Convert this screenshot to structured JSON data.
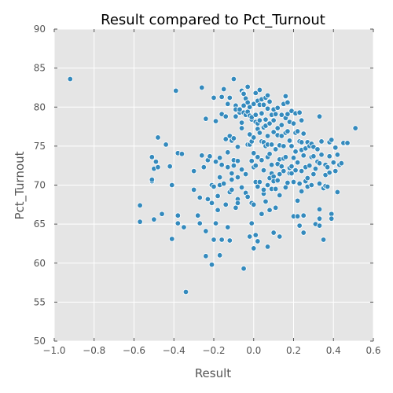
{
  "chart_data": {
    "type": "scatter",
    "title": "Result compared to Pct_Turnout",
    "xlabel": "Result",
    "ylabel": "Pct_Turnout",
    "xlim": [
      -1.0,
      0.6
    ],
    "ylim": [
      50,
      90
    ],
    "x_ticks": [
      -1.0,
      -0.8,
      -0.6,
      -0.4,
      -0.2,
      0.0,
      0.2,
      0.4,
      0.6
    ],
    "x_tick_labels": [
      "−1.0",
      "−0.8",
      "−0.6",
      "−0.4",
      "−0.2",
      "0.0",
      "0.2",
      "0.4",
      "0.6"
    ],
    "y_ticks": [
      50,
      55,
      60,
      65,
      70,
      75,
      80,
      85,
      90
    ],
    "y_tick_labels": [
      "50",
      "55",
      "60",
      "65",
      "70",
      "75",
      "80",
      "85",
      "90"
    ],
    "grid": true,
    "background_color": "#e5e5e5",
    "point_color": "#348abd",
    "points": [
      [
        -0.92,
        83.6
      ],
      [
        -0.57,
        67.4
      ],
      [
        -0.57,
        65.3
      ],
      [
        -0.51,
        70.5
      ],
      [
        -0.51,
        70.7
      ],
      [
        -0.51,
        73.6
      ],
      [
        -0.5,
        72.1
      ],
      [
        -0.5,
        65.6
      ],
      [
        -0.49,
        73.0
      ],
      [
        -0.48,
        72.3
      ],
      [
        -0.48,
        76.1
      ],
      [
        -0.46,
        66.3
      ],
      [
        -0.44,
        75.2
      ],
      [
        -0.42,
        72.4
      ],
      [
        -0.41,
        70.0
      ],
      [
        -0.41,
        63.1
      ],
      [
        -0.39,
        82.1
      ],
      [
        -0.38,
        74.1
      ],
      [
        -0.38,
        66.1
      ],
      [
        -0.38,
        65.1
      ],
      [
        -0.36,
        74.0
      ],
      [
        -0.35,
        64.6
      ],
      [
        -0.34,
        56.3
      ],
      [
        -0.3,
        69.4
      ],
      [
        -0.3,
        71.8
      ],
      [
        -0.28,
        66.1
      ],
      [
        -0.27,
        65.1
      ],
      [
        -0.27,
        68.4
      ],
      [
        -0.26,
        73.8
      ],
      [
        -0.26,
        82.5
      ],
      [
        -0.25,
        72.3
      ],
      [
        -0.24,
        64.1
      ],
      [
        -0.24,
        60.9
      ],
      [
        -0.24,
        78.5
      ],
      [
        -0.23,
        68.2
      ],
      [
        -0.23,
        73.2
      ],
      [
        -0.22,
        73.7
      ],
      [
        -0.21,
        67.7
      ],
      [
        -0.21,
        70.0
      ],
      [
        -0.2,
        69.8
      ],
      [
        -0.21,
        59.8
      ],
      [
        -0.2,
        81.2
      ],
      [
        -0.2,
        63.0
      ],
      [
        -0.19,
        78.2
      ],
      [
        -0.19,
        65.1
      ],
      [
        -0.19,
        73.0
      ],
      [
        -0.18,
        68.6
      ],
      [
        -0.18,
        66.8
      ],
      [
        -0.17,
        61.0
      ],
      [
        -0.17,
        71.0
      ],
      [
        -0.17,
        70.0
      ],
      [
        -0.17,
        73.5
      ],
      [
        -0.16,
        72.6
      ],
      [
        -0.16,
        63.0
      ],
      [
        -0.16,
        79.1
      ],
      [
        -0.16,
        81.3
      ],
      [
        -0.15,
        82.3
      ],
      [
        -0.15,
        70.2
      ],
      [
        -0.14,
        75.9
      ],
      [
        -0.14,
        78.8
      ],
      [
        -0.14,
        67.5
      ],
      [
        -0.13,
        80.4
      ],
      [
        -0.13,
        64.6
      ],
      [
        -0.13,
        74.2
      ],
      [
        -0.13,
        72.3
      ],
      [
        -0.12,
        69.1
      ],
      [
        -0.12,
        81.2
      ],
      [
        -0.12,
        76.3
      ],
      [
        -0.12,
        62.9
      ],
      [
        -0.11,
        75.7
      ],
      [
        -0.11,
        69.4
      ],
      [
        -0.11,
        70.7
      ],
      [
        -0.11,
        71.5
      ],
      [
        -0.1,
        73.2
      ],
      [
        -0.1,
        72.5
      ],
      [
        -0.1,
        76.0
      ],
      [
        -0.1,
        83.6
      ],
      [
        -0.09,
        67.1
      ],
      [
        -0.09,
        78.8
      ],
      [
        -0.09,
        80.2
      ],
      [
        -0.09,
        79.7
      ],
      [
        -0.08,
        68.2
      ],
      [
        -0.08,
        73.1
      ],
      [
        -0.08,
        74.9
      ],
      [
        -0.08,
        71.0
      ],
      [
        -0.08,
        67.7
      ],
      [
        -0.07,
        79.3
      ],
      [
        -0.07,
        79.7
      ],
      [
        -0.06,
        72.0
      ],
      [
        -0.06,
        82.1
      ],
      [
        -0.06,
        77.3
      ],
      [
        -0.06,
        78.0
      ],
      [
        -0.06,
        69.7
      ],
      [
        -0.05,
        80.2
      ],
      [
        -0.05,
        79.3
      ],
      [
        -0.05,
        59.3
      ],
      [
        -0.05,
        81.8
      ],
      [
        -0.05,
        81.7
      ],
      [
        -0.04,
        81.1
      ],
      [
        -0.04,
        71.4
      ],
      [
        -0.04,
        79.0
      ],
      [
        -0.04,
        69.0
      ],
      [
        -0.03,
        80.6
      ],
      [
        -0.03,
        82.6
      ],
      [
        -0.03,
        75.2
      ],
      [
        -0.03,
        68.5
      ],
      [
        -0.03,
        79.4
      ],
      [
        -0.02,
        78.9
      ],
      [
        -0.02,
        76.4
      ],
      [
        -0.02,
        76.5
      ],
      [
        -0.02,
        80.0
      ],
      [
        -0.02,
        75.2
      ],
      [
        -0.02,
        63.4
      ],
      [
        -0.01,
        67.7
      ],
      [
        -0.01,
        75.6
      ],
      [
        -0.01,
        73.1
      ],
      [
        -0.01,
        65.1
      ],
      [
        -0.01,
        78.4
      ],
      [
        -0.01,
        78.7
      ],
      [
        0.0,
        72.3
      ],
      [
        0.0,
        74.1
      ],
      [
        0.0,
        61.9
      ],
      [
        0.0,
        67.5
      ],
      [
        0.0,
        80.4
      ],
      [
        0.0,
        76.1
      ],
      [
        0.01,
        79.0
      ],
      [
        0.01,
        78.1
      ],
      [
        0.01,
        81.8
      ],
      [
        0.01,
        72.5
      ],
      [
        0.01,
        63.6
      ],
      [
        0.01,
        70.4
      ],
      [
        0.02,
        73.6
      ],
      [
        0.02,
        77.2
      ],
      [
        0.02,
        69.8
      ],
      [
        0.02,
        80.8
      ],
      [
        0.02,
        77.9
      ],
      [
        0.02,
        62.8
      ],
      [
        0.03,
        76.7
      ],
      [
        0.03,
        78.3
      ],
      [
        0.03,
        80.3
      ],
      [
        0.03,
        82.2
      ],
      [
        0.03,
        70.4
      ],
      [
        0.04,
        79.1
      ],
      [
        0.04,
        81.0
      ],
      [
        0.04,
        73.2
      ],
      [
        0.04,
        66.3
      ],
      [
        0.04,
        79.2
      ],
      [
        0.04,
        75.6
      ],
      [
        0.05,
        68.9
      ],
      [
        0.05,
        75.5
      ],
      [
        0.05,
        71.9
      ],
      [
        0.05,
        80.3
      ],
      [
        0.05,
        69.4
      ],
      [
        0.05,
        77.4
      ],
      [
        0.06,
        75.0
      ],
      [
        0.06,
        81.2
      ],
      [
        0.06,
        78.4
      ],
      [
        0.06,
        67.9
      ],
      [
        0.06,
        77.6
      ],
      [
        0.07,
        73.6
      ],
      [
        0.07,
        79.8
      ],
      [
        0.07,
        62.1
      ],
      [
        0.07,
        70.0
      ],
      [
        0.07,
        81.5
      ],
      [
        0.07,
        75.2
      ],
      [
        0.07,
        76.3
      ],
      [
        0.08,
        70.9
      ],
      [
        0.08,
        66.8
      ],
      [
        0.08,
        74.0
      ],
      [
        0.08,
        80.7
      ],
      [
        0.08,
        77.9
      ],
      [
        0.09,
        79.0
      ],
      [
        0.09,
        75.2
      ],
      [
        0.09,
        72.6
      ],
      [
        0.09,
        69.5
      ],
      [
        0.09,
        71.5
      ],
      [
        0.1,
        78.3
      ],
      [
        0.1,
        79.7
      ],
      [
        0.1,
        71.1
      ],
      [
        0.1,
        70.5
      ],
      [
        0.1,
        76.8
      ],
      [
        0.1,
        63.9
      ],
      [
        0.11,
        79.1
      ],
      [
        0.11,
        74.6
      ],
      [
        0.11,
        67.1
      ],
      [
        0.11,
        69.5
      ],
      [
        0.12,
        72.7
      ],
      [
        0.12,
        70.6
      ],
      [
        0.12,
        79.9
      ],
      [
        0.12,
        77.3
      ],
      [
        0.12,
        76.4
      ],
      [
        0.13,
        63.4
      ],
      [
        0.13,
        75.1
      ],
      [
        0.13,
        71.4
      ],
      [
        0.13,
        68.7
      ],
      [
        0.13,
        73.3
      ],
      [
        0.14,
        77.7
      ],
      [
        0.14,
        76.3
      ],
      [
        0.14,
        79.0
      ],
      [
        0.14,
        72.4
      ],
      [
        0.15,
        71.8
      ],
      [
        0.15,
        73.4
      ],
      [
        0.15,
        80.4
      ],
      [
        0.15,
        75.0
      ],
      [
        0.16,
        81.3
      ],
      [
        0.16,
        76.7
      ],
      [
        0.16,
        81.4
      ],
      [
        0.16,
        78.6
      ],
      [
        0.16,
        73.6
      ],
      [
        0.16,
        69.7
      ],
      [
        0.17,
        80.6
      ],
      [
        0.17,
        79.1
      ],
      [
        0.17,
        76.9
      ],
      [
        0.17,
        70.3
      ],
      [
        0.18,
        75.7
      ],
      [
        0.18,
        72.2
      ],
      [
        0.18,
        78.1
      ],
      [
        0.18,
        71.5
      ],
      [
        0.19,
        71.5
      ],
      [
        0.19,
        75.0
      ],
      [
        0.19,
        79.5
      ],
      [
        0.19,
        72.4
      ],
      [
        0.2,
        66.0
      ],
      [
        0.2,
        73.5
      ],
      [
        0.2,
        77.9
      ],
      [
        0.2,
        70.4
      ],
      [
        0.21,
        76.7
      ],
      [
        0.21,
        74.3
      ],
      [
        0.21,
        79.2
      ],
      [
        0.21,
        71.9
      ],
      [
        0.22,
        76.9
      ],
      [
        0.22,
        72.9
      ],
      [
        0.22,
        68.0
      ],
      [
        0.22,
        66.0
      ],
      [
        0.23,
        64.8
      ],
      [
        0.23,
        75.6
      ],
      [
        0.23,
        79.3
      ],
      [
        0.23,
        70.2
      ],
      [
        0.24,
        74.5
      ],
      [
        0.24,
        78.3
      ],
      [
        0.24,
        71.8
      ],
      [
        0.24,
        75.5
      ],
      [
        0.24,
        69.2
      ],
      [
        0.25,
        73.8
      ],
      [
        0.25,
        76.6
      ],
      [
        0.25,
        63.9
      ],
      [
        0.25,
        66.1
      ],
      [
        0.26,
        70.5
      ],
      [
        0.26,
        74.7
      ],
      [
        0.26,
        72.3
      ],
      [
        0.27,
        75.5
      ],
      [
        0.27,
        70.9
      ],
      [
        0.27,
        69.8
      ],
      [
        0.28,
        75.0
      ],
      [
        0.28,
        72.5
      ],
      [
        0.29,
        73.6
      ],
      [
        0.29,
        75.3
      ],
      [
        0.29,
        70.0
      ],
      [
        0.3,
        73.7
      ],
      [
        0.3,
        74.9
      ],
      [
        0.3,
        71.4
      ],
      [
        0.31,
        72.1
      ],
      [
        0.31,
        65.0
      ],
      [
        0.32,
        74.6
      ],
      [
        0.32,
        73.0
      ],
      [
        0.33,
        70.2
      ],
      [
        0.33,
        72.8
      ],
      [
        0.33,
        66.9
      ],
      [
        0.33,
        78.8
      ],
      [
        0.33,
        64.8
      ],
      [
        0.33,
        65.7
      ],
      [
        0.34,
        75.6
      ],
      [
        0.34,
        73.9
      ],
      [
        0.35,
        69.6
      ],
      [
        0.35,
        63.0
      ],
      [
        0.36,
        71.3
      ],
      [
        0.36,
        69.9
      ],
      [
        0.36,
        72.6
      ],
      [
        0.37,
        69.8
      ],
      [
        0.37,
        72.3
      ],
      [
        0.38,
        75.5
      ],
      [
        0.38,
        73.7
      ],
      [
        0.38,
        71.6
      ],
      [
        0.39,
        75.8
      ],
      [
        0.39,
        66.3
      ],
      [
        0.39,
        65.7
      ],
      [
        0.4,
        72.9
      ],
      [
        0.41,
        71.8
      ],
      [
        0.41,
        74.8
      ],
      [
        0.42,
        73.9
      ],
      [
        0.42,
        69.1
      ],
      [
        0.43,
        72.6
      ],
      [
        0.44,
        72.8
      ],
      [
        0.45,
        75.4
      ],
      [
        0.47,
        75.4
      ],
      [
        0.51,
        77.3
      ]
    ]
  }
}
